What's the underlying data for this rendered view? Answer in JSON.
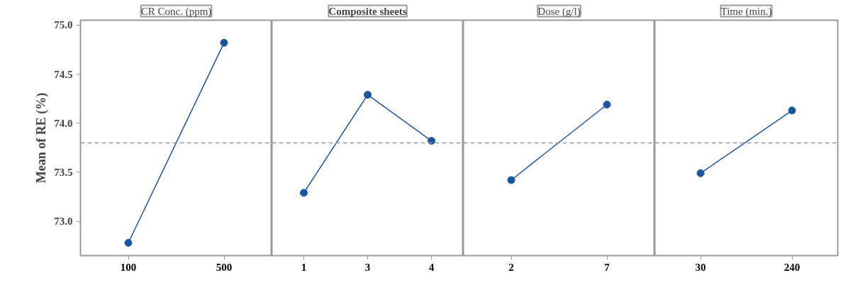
{
  "chart_data": [
    {
      "type": "line",
      "title": "CR Conc. (ppm)",
      "ylabel": "Mean of RE (%)",
      "categories": [
        "100",
        "500"
      ],
      "series": [
        {
          "color": "#1a56a0",
          "values": [
            72.78,
            74.82
          ]
        }
      ],
      "ylim": [
        72.65,
        75.05
      ],
      "yticks": [
        {
          "value": 73.0,
          "label": "73.0"
        },
        {
          "value": 73.5,
          "label": "73.5"
        },
        {
          "value": 74.0,
          "label": "74.0"
        },
        {
          "value": 74.5,
          "label": "74.5"
        },
        {
          "value": 75.0,
          "label": "75.0"
        }
      ],
      "ref_lines": [
        {
          "axis": "y",
          "value": 73.8,
          "color": "#999999",
          "line_style": "dashed"
        }
      ],
      "marker": "circle",
      "grid": false
    },
    {
      "type": "line",
      "title": "Composite sheets",
      "categories": [
        "1",
        "3",
        "4"
      ],
      "series": [
        {
          "color": "#1a56a0",
          "values": [
            73.29,
            74.29,
            73.82
          ]
        }
      ],
      "ylim": [
        72.65,
        75.05
      ],
      "tick_labels": "x",
      "ref_lines": [
        {
          "axis": "y",
          "value": 73.8,
          "color": "#999999",
          "line_style": "dashed"
        }
      ],
      "marker": "circle",
      "grid": false
    },
    {
      "type": "line",
      "title": "Dose (g/l)",
      "categories": [
        "2",
        "7"
      ],
      "series": [
        {
          "color": "#1a56a0",
          "values": [
            73.42,
            74.19
          ]
        }
      ],
      "ylim": [
        72.65,
        75.05
      ],
      "tick_labels": "x",
      "ref_lines": [
        {
          "axis": "y",
          "value": 73.8,
          "color": "#999999",
          "line_style": "dashed"
        }
      ],
      "marker": "circle",
      "grid": false
    },
    {
      "type": "line",
      "title": "Time (min.)",
      "categories": [
        "30",
        "240"
      ],
      "series": [
        {
          "color": "#1a56a0",
          "values": [
            73.49,
            74.13
          ]
        }
      ],
      "ylim": [
        72.65,
        75.05
      ],
      "tick_labels": "x",
      "ref_lines": [
        {
          "axis": "y",
          "value": 73.8,
          "color": "#999999",
          "line_style": "dashed"
        }
      ],
      "marker": "circle",
      "grid": false
    }
  ]
}
